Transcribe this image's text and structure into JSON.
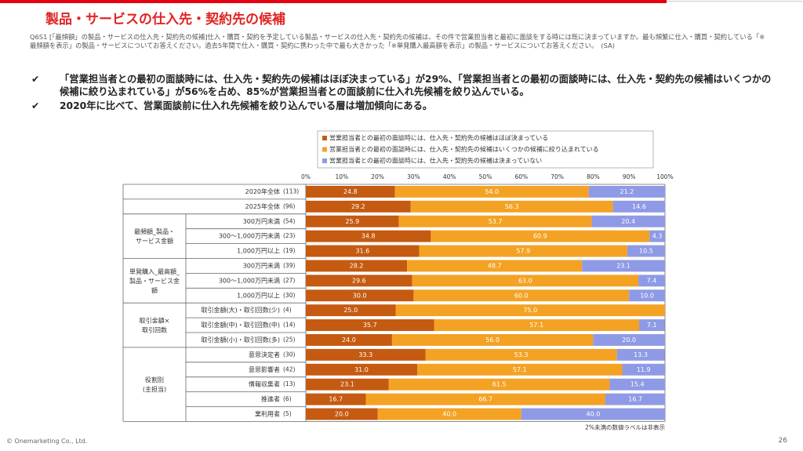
{
  "title": "製品・サービスの仕入先・契約先の候補",
  "question": "Q6S1 [「最頻額」の製品・サービスの仕入先・契約先の候補]仕入・購買・契約を予定している製品・サービスの仕入先・契約先の候補は、その件で営業担当者と最初に面談をする時には既に決まっていますか。最も頻繁に仕入・購買・契約している「※最頻額を表示」の製品・サービスについてお答えください。過去5年間で仕入・購買・契約に携わった中で最も大きかった「※単発購入最高額を表示」の製品・サービスについてお答えください。　(SA)",
  "bullets": [
    "「営業担当者との最初の面談時には、仕入先・契約先の候補はほぼ決まっている」が29%、「営業担当者との最初の面談時には、仕入先・契約先の候補はいくつかの候補に絞り込まれている」が56%を占め、85%が営業担当者との面談前に仕入れ先候補を絞り込んでいる。",
    "2020年に比べて、営業面談前に仕入れ先候補を絞り込んでいる層は増加傾向にある。"
  ],
  "footer": "© Onemarketing Co., Ltd.",
  "page_number": "26",
  "chart_data": {
    "type": "stacked_bar_h",
    "categories": [
      "2020年全体",
      "2025年全体",
      "300万円未満",
      "300～1,000万円未満",
      "1,000万円以上",
      "300万円未満",
      "300～1,000万円未満",
      "1,000万円以上",
      "取引金額(大)・取引回数(少)",
      "取引金額(中)・取引回数(中)",
      "取引金額(小)・取引回数(多)",
      "意思決定者",
      "意思影響者",
      "情報収集者",
      "推進者",
      "業利用者"
    ],
    "n": [
      "(113)",
      "(96)",
      "(54)",
      "(23)",
      "(19)",
      "(39)",
      "(27)",
      "(30)",
      "(4)",
      "(14)",
      "(25)",
      "(30)",
      "(42)",
      "(13)",
      "(6)",
      "(5)"
    ],
    "group_labels": [
      null,
      null,
      "最頻額_製品・\nサービス金額",
      null,
      null,
      "単発購入_最高額_\n製品・サービス金\n額",
      null,
      null,
      "取引金額×\n取引回数",
      null,
      null,
      "役割別\n(主担当)",
      null,
      null,
      null,
      null
    ],
    "series": [
      {
        "name": "営業担当者との最初の面談時には、仕入先・契約先の候補はほぼ決まっている",
        "color": "#c55a11",
        "values": [
          24.8,
          29.2,
          25.9,
          34.8,
          31.6,
          28.2,
          29.6,
          30.0,
          25.0,
          35.7,
          24.0,
          33.3,
          31.0,
          23.1,
          16.7,
          20.0
        ],
        "value_labels": [
          "24.8",
          "29.2",
          "25.9",
          "34.8",
          "31.6",
          "28.2",
          "29.6",
          "30.0",
          "25.0",
          "35.7",
          "24.0",
          "33.3",
          "31.0",
          "23.1",
          "16.7",
          "20.0"
        ]
      },
      {
        "name": "営業担当者との最初の面談時には、仕入先・契約先の候補はいくつかの候補に絞り込まれている",
        "color": "#f4a223",
        "values": [
          54.0,
          56.3,
          53.7,
          60.9,
          57.9,
          48.7,
          63.0,
          60.0,
          75.0,
          57.1,
          56.0,
          53.3,
          57.1,
          61.5,
          66.7,
          40.0
        ],
        "value_labels": [
          "54.0",
          "56.3",
          "53.7",
          "60.9",
          "57.9",
          "48.7",
          "63.0",
          "60.0",
          "75.0",
          "57.1",
          "56.0",
          "53.3",
          "57.1",
          "61.5",
          "66.7",
          "40.0"
        ]
      },
      {
        "name": "営業担当者との最初の面談時には、仕入先・契約先の候補は決まっていない",
        "color": "#8f9ae6",
        "values": [
          21.2,
          14.6,
          20.4,
          4.3,
          10.5,
          23.1,
          7.4,
          10.0,
          0,
          7.1,
          20.0,
          13.3,
          11.9,
          15.4,
          16.7,
          40.0
        ],
        "value_labels": [
          "21.2",
          "14.6",
          "20.4",
          "4.3",
          "10.5",
          "23.1",
          "7.4",
          "10.0",
          null,
          "7.1",
          "20.0",
          "13.3",
          "11.9",
          "15.4",
          "16.7",
          "40.0"
        ]
      }
    ],
    "xlim": [
      0,
      100
    ],
    "xticks": [
      {
        "value": 0,
        "label": "0%"
      },
      {
        "value": 10,
        "label": "10%"
      },
      {
        "value": 20,
        "label": "20%"
      },
      {
        "value": 30,
        "label": "30%"
      },
      {
        "value": 40,
        "label": "40%"
      },
      {
        "value": 50,
        "label": "50%"
      },
      {
        "value": 60,
        "label": "60%"
      },
      {
        "value": 70,
        "label": "70%"
      },
      {
        "value": 80,
        "label": "80%"
      },
      {
        "value": 90,
        "label": "90%"
      },
      {
        "value": 100,
        "label": "100%"
      }
    ],
    "note": "2%未満の数値ラベルは非表示"
  }
}
